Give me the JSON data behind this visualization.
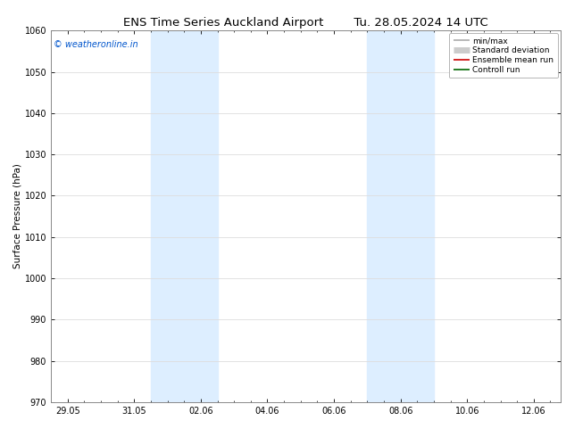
{
  "title_left": "ENS Time Series Auckland Airport",
  "title_right": "Tu. 28.05.2024 14 UTC",
  "ylabel": "Surface Pressure (hPa)",
  "ylim": [
    970,
    1060
  ],
  "yticks": [
    970,
    980,
    990,
    1000,
    1010,
    1020,
    1030,
    1040,
    1050,
    1060
  ],
  "xtick_labels": [
    "29.05",
    "31.05",
    "02.06",
    "04.06",
    "06.06",
    "08.06",
    "10.06",
    "12.06"
  ],
  "xtick_positions": [
    0,
    2,
    4,
    6,
    8,
    10,
    12,
    14
  ],
  "xlim": [
    -0.5,
    14.8
  ],
  "shade_bands": [
    {
      "xmin": 2.5,
      "xmax": 4.5,
      "color": "#ddeeff"
    },
    {
      "xmin": 9.0,
      "xmax": 11.0,
      "color": "#ddeeff"
    }
  ],
  "watermark": "© weatheronline.in",
  "watermark_color": "#0055cc",
  "legend_items": [
    {
      "label": "min/max",
      "color": "#aaaaaa",
      "lw": 1.2
    },
    {
      "label": "Standard deviation",
      "color": "#cccccc",
      "lw": 5
    },
    {
      "label": "Ensemble mean run",
      "color": "#cc0000",
      "lw": 1.2
    },
    {
      "label": "Controll run",
      "color": "#006600",
      "lw": 1.2
    }
  ],
  "bg_color": "#ffffff",
  "plot_bg_color": "#ffffff",
  "grid_color": "#dddddd",
  "title_fontsize": 9.5,
  "ylabel_fontsize": 7.5,
  "tick_fontsize": 7,
  "watermark_fontsize": 7,
  "legend_fontsize": 6.5
}
